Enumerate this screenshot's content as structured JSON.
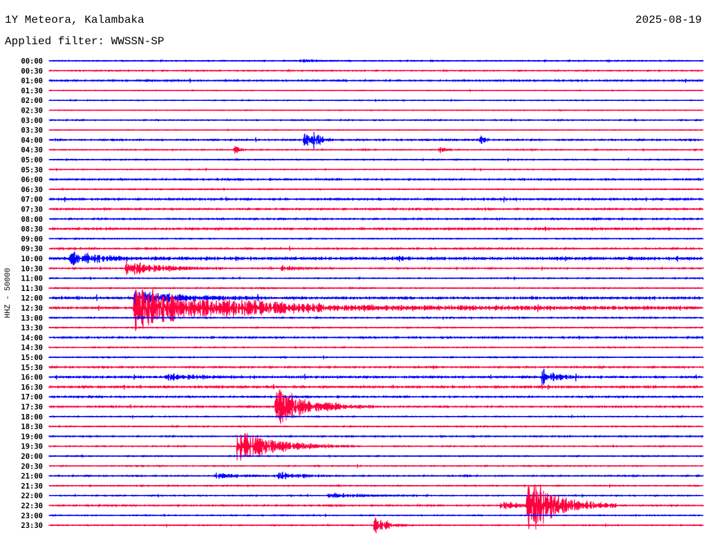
{
  "header": {
    "station": "1Y Meteora, Kalambaka",
    "filter": "Applied filter: WWSSN-SP",
    "date": "2025-08-19"
  },
  "chart_data": {
    "type": "line",
    "title": "1Y Meteora, Kalambaka",
    "ylabel": "HHZ - 50000",
    "row_minutes": 30,
    "colors": {
      "even": "#0000ff",
      "odd": "#ff0040"
    },
    "row_labels": [
      "00:00",
      "00:30",
      "01:00",
      "01:30",
      "02:00",
      "02:30",
      "03:00",
      "03:30",
      "04:00",
      "04:30",
      "05:00",
      "05:30",
      "06:00",
      "06:30",
      "07:00",
      "07:30",
      "08:00",
      "08:30",
      "09:00",
      "09:30",
      "10:00",
      "10:30",
      "11:00",
      "11:30",
      "12:00",
      "12:30",
      "13:00",
      "13:30",
      "14:00",
      "14:30",
      "15:00",
      "15:30",
      "16:00",
      "16:30",
      "17:00",
      "17:30",
      "18:00",
      "18:30",
      "19:00",
      "19:30",
      "20:00",
      "20:30",
      "21:00",
      "21:30",
      "22:00",
      "22:30",
      "23:00",
      "23:30"
    ],
    "noise": [
      1,
      1,
      1.5,
      0.6,
      0.8,
      0.6,
      1,
      0.6,
      1.5,
      1,
      1,
      0.8,
      1.5,
      1,
      2,
      1.5,
      1.5,
      2,
      1,
      1.5,
      3,
      1.2,
      1,
      1,
      2.5,
      2,
      1.2,
      1,
      1.5,
      1,
      1,
      1.5,
      2,
      2,
      1.5,
      1.5,
      1,
      1,
      1.2,
      1,
      1,
      1,
      1.2,
      1,
      1,
      1.2,
      1,
      1
    ],
    "events": [
      {
        "row": 0,
        "minute": 11.5,
        "amp": 2,
        "dur": 0.6
      },
      {
        "row": 8,
        "minute": 11.7,
        "amp": 12,
        "dur": 0.3
      },
      {
        "row": 8,
        "minute": 12.1,
        "amp": 15,
        "dur": 0.3
      },
      {
        "row": 8,
        "minute": 19.8,
        "amp": 9,
        "dur": 0.15
      },
      {
        "row": 9,
        "minute": 8.5,
        "amp": 8,
        "dur": 0.2
      },
      {
        "row": 9,
        "minute": 17.9,
        "amp": 6,
        "dur": 0.2
      },
      {
        "row": 20,
        "minute": 1.0,
        "amp": 10,
        "dur": 1.5
      },
      {
        "row": 21,
        "minute": 3.5,
        "amp": 12,
        "dur": 1.5
      },
      {
        "row": 21,
        "minute": 10.6,
        "amp": 4,
        "dur": 0.8
      },
      {
        "row": 24,
        "minute": 3.9,
        "amp": 10,
        "dur": 2
      },
      {
        "row": 25,
        "minute": 3.9,
        "amp": 35,
        "dur": 3
      },
      {
        "row": 25,
        "minute": 8,
        "amp": 5,
        "dur": 14
      },
      {
        "row": 32,
        "minute": 5.3,
        "amp": 5,
        "dur": 1.2
      },
      {
        "row": 32,
        "minute": 22.6,
        "amp": 15,
        "dur": 0.6
      },
      {
        "row": 35,
        "minute": 10.4,
        "amp": 28,
        "dur": 1.5
      },
      {
        "row": 39,
        "minute": 8.6,
        "amp": 25,
        "dur": 1.8
      },
      {
        "row": 42,
        "minute": 7.6,
        "amp": 5,
        "dur": 0.8
      },
      {
        "row": 42,
        "minute": 10.5,
        "amp": 6,
        "dur": 0.9
      },
      {
        "row": 44,
        "minute": 12.8,
        "amp": 4,
        "dur": 1.5
      },
      {
        "row": 45,
        "minute": 20.7,
        "amp": 8,
        "dur": 0.8
      },
      {
        "row": 45,
        "minute": 21.9,
        "amp": 45,
        "dur": 1.4
      },
      {
        "row": 47,
        "minute": 14.9,
        "amp": 14,
        "dur": 0.6
      }
    ]
  }
}
